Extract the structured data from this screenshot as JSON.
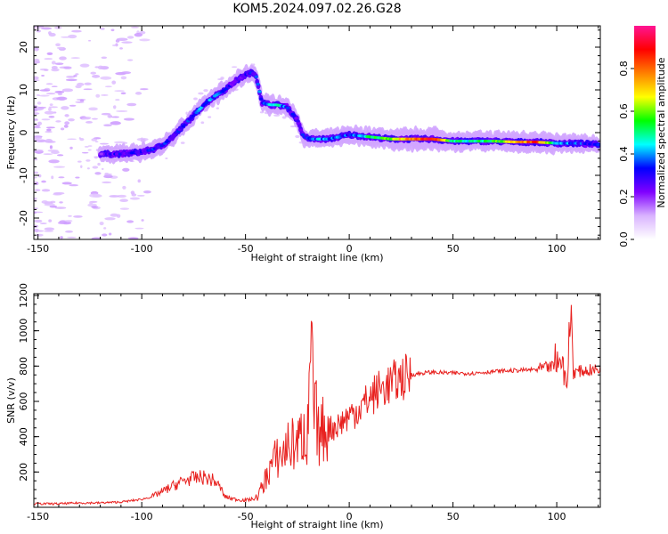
{
  "title": "KOM5.2024.097.02.26.G28",
  "chart_data": [
    {
      "type": "heatmap",
      "name": "spectrogram",
      "xlabel": "Height of straight line (km)",
      "ylabel": "Frequency (Hz)",
      "xlim": [
        -152,
        121
      ],
      "ylim": [
        -25,
        25
      ],
      "xticks": [
        "-150",
        "-100",
        "-50",
        "0",
        "50",
        "100"
      ],
      "xtick_values": [
        -150,
        -100,
        -50,
        0,
        50,
        100
      ],
      "yticks": [
        "-20",
        "-10",
        "0",
        "10",
        "20"
      ],
      "ytick_values": [
        -20,
        -10,
        0,
        10,
        20
      ],
      "colorbar": {
        "label": "Normalized spectral amplitude",
        "range": [
          0,
          1
        ],
        "ticks": [
          "0.0",
          "0.2",
          "0.4",
          "0.6",
          "0.8"
        ],
        "tick_values": [
          0.0,
          0.2,
          0.4,
          0.6,
          0.8
        ],
        "colors": [
          "#ffffff",
          "#d9b3ff",
          "#8000ff",
          "#0000ff",
          "#00ffff",
          "#00ff00",
          "#ffff00",
          "#ff8000",
          "#ff0000",
          "#ff1493"
        ]
      },
      "ridge": {
        "x": [
          -120,
          -110,
          -100,
          -95,
          -90,
          -85,
          -80,
          -75,
          -70,
          -65,
          -60,
          -55,
          -50,
          -47,
          -45,
          -42,
          -38,
          -35,
          -30,
          -25,
          -22,
          -18,
          -15,
          -10,
          -5,
          0,
          10,
          20,
          30,
          40,
          50,
          60,
          70,
          80,
          90,
          100,
          110,
          120
        ],
        "y": [
          -5,
          -5,
          -4.5,
          -4,
          -3,
          -1,
          1.5,
          4,
          6.5,
          8.5,
          10,
          12,
          13.5,
          14,
          13.5,
          7,
          6.5,
          6.5,
          6,
          3,
          -1,
          -1.5,
          -1.5,
          -1.5,
          -1,
          -0.5,
          -1,
          -1.5,
          -1.5,
          -1.5,
          -2,
          -2,
          -2,
          -2.2,
          -2.2,
          -2.5,
          -2.5,
          -2.8
        ],
        "amplitude": [
          0.25,
          0.3,
          0.3,
          0.35,
          0.3,
          0.3,
          0.3,
          0.35,
          0.4,
          0.35,
          0.3,
          0.25,
          0.3,
          0.3,
          0.3,
          0.35,
          0.45,
          0.5,
          0.35,
          0.25,
          0.3,
          0.35,
          0.4,
          0.35,
          0.35,
          0.35,
          0.5,
          0.6,
          0.75,
          0.9,
          0.5,
          0.45,
          0.55,
          0.7,
          0.85,
          0.4,
          0.35,
          0.3
        ]
      }
    },
    {
      "type": "line",
      "name": "snr",
      "xlabel": "Height of straight line (km)",
      "ylabel": "SNR (v/v)",
      "xlim": [
        -152,
        121
      ],
      "ylim": [
        0,
        1210
      ],
      "xticks": [
        "-150",
        "-100",
        "-50",
        "0",
        "50",
        "100"
      ],
      "xtick_values": [
        -150,
        -100,
        -50,
        0,
        50,
        100
      ],
      "yticks": [
        "200",
        "400",
        "600",
        "800",
        "1000",
        "1200"
      ],
      "ytick_values": [
        200,
        400,
        600,
        800,
        1000,
        1200
      ],
      "color": "#e8211f",
      "x": [
        -152,
        -140,
        -130,
        -120,
        -110,
        -100,
        -95,
        -90,
        -85,
        -80,
        -75,
        -70,
        -65,
        -62,
        -60,
        -55,
        -50,
        -45,
        -42,
        -38,
        -35,
        -32,
        -30,
        -25,
        -22,
        -20,
        -18,
        -17,
        -16,
        -15,
        -12,
        -10,
        -5,
        0,
        5,
        10,
        15,
        20,
        25,
        30,
        35,
        40,
        50,
        60,
        70,
        80,
        90,
        95,
        100,
        103,
        105,
        107,
        108,
        110,
        115,
        121
      ],
      "y": [
        20,
        20,
        25,
        25,
        30,
        45,
        60,
        90,
        120,
        150,
        165,
        170,
        150,
        110,
        60,
        45,
        40,
        50,
        110,
        230,
        280,
        300,
        350,
        360,
        420,
        380,
        900,
        500,
        520,
        400,
        450,
        440,
        470,
        520,
        560,
        620,
        670,
        700,
        730,
        750,
        760,
        765,
        760,
        760,
        770,
        775,
        780,
        790,
        800,
        830,
        680,
        1150,
        760,
        770,
        775,
        780
      ]
    }
  ]
}
